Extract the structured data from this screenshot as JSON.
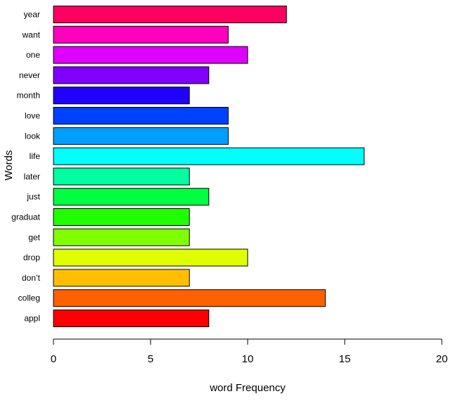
{
  "chart_data": {
    "type": "bar",
    "orientation": "horizontal",
    "categories": [
      "appl",
      "colleg",
      "don’t",
      "drop",
      "get",
      "graduat",
      "just",
      "later",
      "life",
      "look",
      "love",
      "month",
      "never",
      "one",
      "want",
      "year"
    ],
    "values": [
      8,
      14,
      7,
      10,
      7,
      7,
      8,
      7,
      16,
      9,
      9,
      7,
      8,
      10,
      9,
      12
    ],
    "colors": [
      "#FF0000",
      "#FF6000",
      "#FFBF00",
      "#DFFF00",
      "#80FF00",
      "#20FF00",
      "#00FF40",
      "#00FF9F",
      "#00FFFF",
      "#009FFF",
      "#0040FF",
      "#2000FF",
      "#8000FF",
      "#DF00FF",
      "#FF00BF",
      "#FF0060"
    ],
    "xlabel": "word Frequency",
    "ylabel": "Words",
    "xlim": [
      0,
      20
    ],
    "xticks": [
      0,
      5,
      10,
      15,
      20
    ],
    "grid": false
  }
}
